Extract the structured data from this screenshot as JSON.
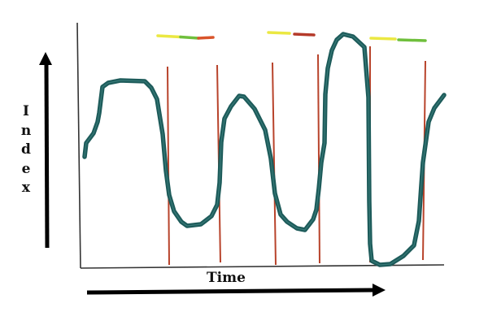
{
  "labels": {
    "y_axis": "Index",
    "x_axis": "Time"
  },
  "colors": {
    "curve": "#1d5b5a",
    "curve_highlight": "#4d9190",
    "markers": "#b8432b",
    "axis": "#333333",
    "arrow": "#000000",
    "seg_yellow": "#ebe842",
    "seg_green": "#6fbf3c",
    "seg_orange": "#d9542a",
    "seg_red": "#b53a2a"
  }
}
